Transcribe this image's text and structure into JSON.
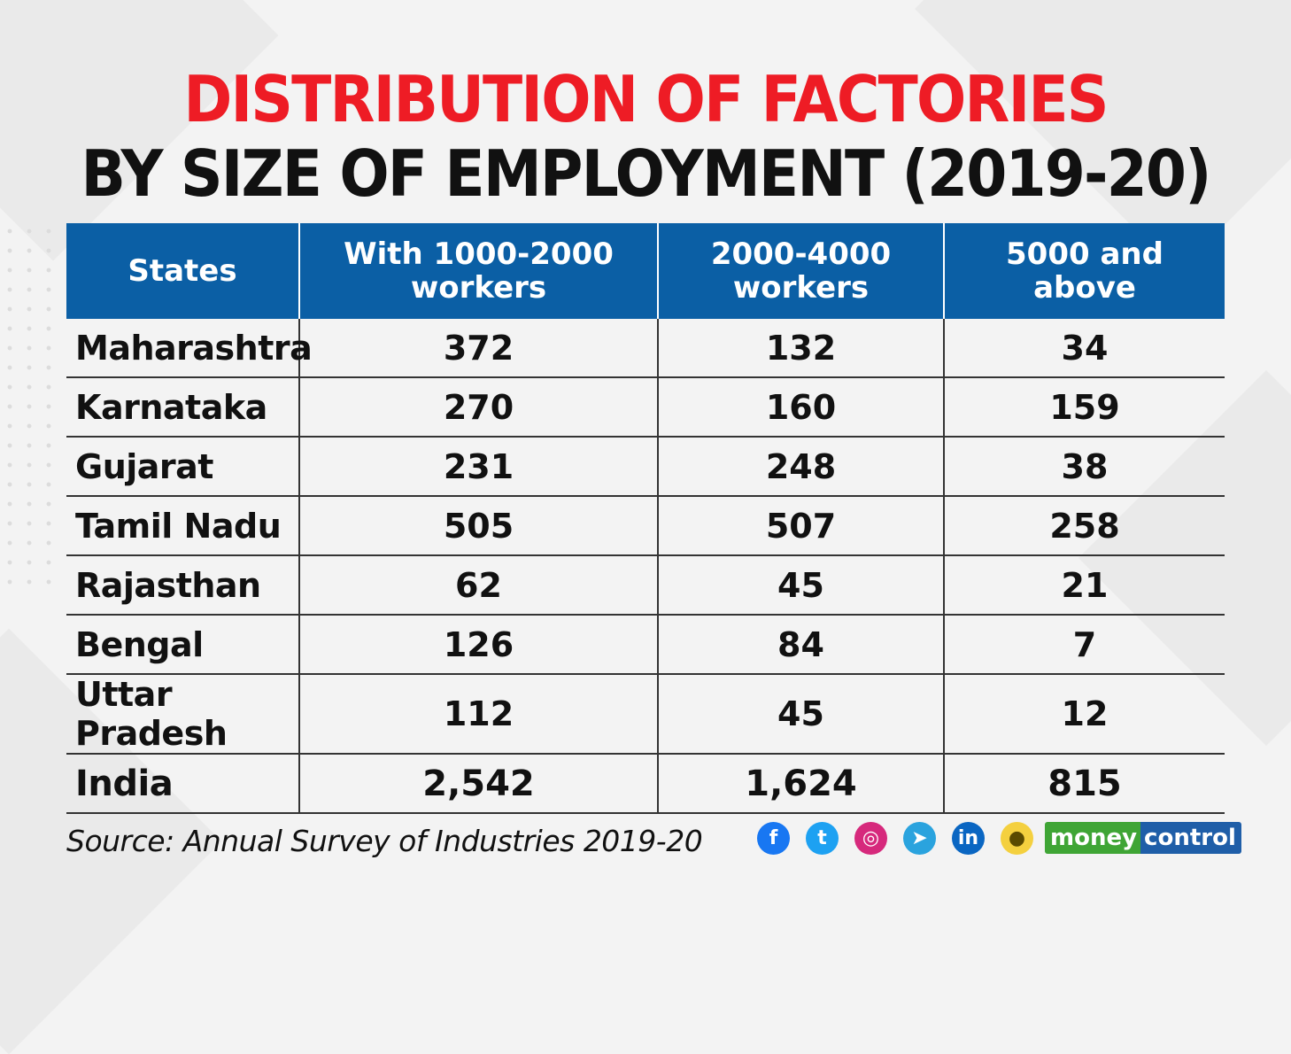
{
  "title_line1": "DISTRIBUTION OF FACTORIES",
  "title_line2": "BY SIZE OF EMPLOYMENT (2019-20)",
  "table": {
    "headers": {
      "states": "States",
      "col1_line1": "With 1000-2000",
      "col1_line2": "workers",
      "col2_line1": "2000-4000",
      "col2_line2": "workers",
      "col3": "5000 and above"
    },
    "rows": [
      {
        "state": "Maharashtra",
        "v1": "372",
        "v2": "132",
        "v3": "34"
      },
      {
        "state": "Karnataka",
        "v1": "270",
        "v2": "160",
        "v3": "159"
      },
      {
        "state": "Gujarat",
        "v1": "231",
        "v2": "248",
        "v3": "38"
      },
      {
        "state": "Tamil Nadu",
        "v1": "505",
        "v2": "507",
        "v3": "258"
      },
      {
        "state": "Rajasthan",
        "v1": "62",
        "v2": "45",
        "v3": "21"
      },
      {
        "state": "Bengal",
        "v1": "126",
        "v2": "84",
        "v3": "7"
      },
      {
        "state": "Uttar Pradesh",
        "v1": "112",
        "v2": "45",
        "v3": "12"
      },
      {
        "state": "India",
        "v1": "2,542",
        "v2": "1,624",
        "v3": "815"
      }
    ]
  },
  "chart_data": {
    "type": "table",
    "title": "DISTRIBUTION OF FACTORIES BY SIZE OF EMPLOYMENT (2019-20)",
    "columns": [
      "States",
      "With 1000-2000 workers",
      "2000-4000 workers",
      "5000 and above"
    ],
    "rows": [
      [
        "Maharashtra",
        372,
        132,
        34
      ],
      [
        "Karnataka",
        270,
        160,
        159
      ],
      [
        "Gujarat",
        231,
        248,
        38
      ],
      [
        "Tamil Nadu",
        505,
        507,
        258
      ],
      [
        "Rajasthan",
        62,
        45,
        21
      ],
      [
        "Bengal",
        126,
        84,
        7
      ],
      [
        "Uttar Pradesh",
        112,
        45,
        12
      ],
      [
        "India",
        2542,
        1624,
        815
      ]
    ]
  },
  "source": "Source: Annual Survey of Industries 2019-20",
  "social_icons": [
    {
      "name": "facebook-icon",
      "glyph": "f",
      "color": "#1877f2"
    },
    {
      "name": "twitter-icon",
      "glyph": "t",
      "color": "#1da1f2"
    },
    {
      "name": "instagram-icon",
      "glyph": "◎",
      "color": "#d6297c"
    },
    {
      "name": "telegram-icon",
      "glyph": "➤",
      "color": "#2aa3de"
    },
    {
      "name": "linkedin-icon",
      "glyph": "in",
      "color": "#0a66c2"
    },
    {
      "name": "koo-icon",
      "glyph": "●",
      "color": "#f4d03f"
    }
  ],
  "brand": {
    "part1": "money",
    "part2": "control"
  },
  "colors": {
    "title_red": "#ee1c25",
    "header_blue": "#0b5fa5",
    "brand_green": "#3fa535",
    "brand_blue": "#1f5ea8"
  }
}
